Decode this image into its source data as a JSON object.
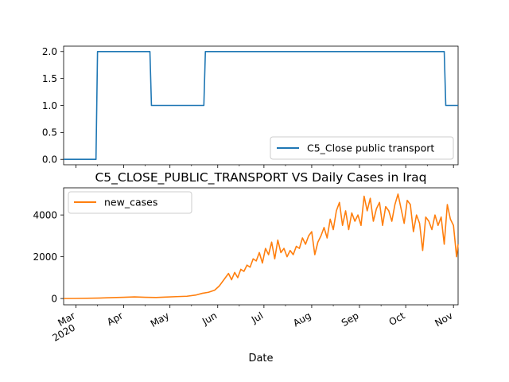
{
  "chart_data": [
    {
      "type": "line",
      "title": "",
      "xlabel": "",
      "ylabel": "",
      "ylim": [
        -0.1,
        2.1
      ],
      "yticks": [
        0.0,
        0.5,
        1.0,
        1.5,
        2.0
      ],
      "ytick_labels": [
        "0.0",
        "0.5",
        "1.0",
        "1.5",
        "2.0"
      ],
      "legend_placement": "lower-right",
      "grid": false,
      "series": [
        {
          "name": "C5_Close public transport",
          "color": "#1f77b4",
          "x": [
            "2020-02-22",
            "2020-03-14",
            "2020-03-15",
            "2020-04-18",
            "2020-04-19",
            "2020-05-23",
            "2020-05-24",
            "2020-10-26",
            "2020-10-27",
            "2020-11-04"
          ],
          "values": [
            0,
            0,
            2,
            2,
            1,
            1,
            2,
            2,
            1,
            1
          ]
        }
      ]
    },
    {
      "type": "line",
      "title": "C5_CLOSE_PUBLIC_TRANSPORT VS Daily Cases in Iraq",
      "xlabel": "Date",
      "ylabel": "",
      "ylim": [
        -300,
        5300
      ],
      "yticks": [
        0,
        2000,
        4000
      ],
      "ytick_labels": [
        "0",
        "2000",
        "4000"
      ],
      "xlim": [
        "2020-02-22",
        "2020-11-04"
      ],
      "xticks": [
        "2020-03-01",
        "2020-04-01",
        "2020-05-01",
        "2020-06-01",
        "2020-07-01",
        "2020-08-01",
        "2020-09-01",
        "2020-10-01",
        "2020-11-01"
      ],
      "xtick_labels": [
        "Mar",
        "Apr",
        "May",
        "Jun",
        "Jul",
        "Aug",
        "Sep",
        "Oct",
        "Nov"
      ],
      "xtick_year_label": "2020",
      "legend_placement": "top-left",
      "grid": false,
      "series": [
        {
          "name": "new_cases",
          "color": "#ff7f0e",
          "x": [
            "2020-02-22",
            "2020-03-01",
            "2020-03-15",
            "2020-03-25",
            "2020-04-01",
            "2020-04-08",
            "2020-04-15",
            "2020-04-22",
            "2020-04-28",
            "2020-05-05",
            "2020-05-12",
            "2020-05-18",
            "2020-05-22",
            "2020-05-26",
            "2020-05-30",
            "2020-06-02",
            "2020-06-05",
            "2020-06-08",
            "2020-06-10",
            "2020-06-12",
            "2020-06-14",
            "2020-06-16",
            "2020-06-18",
            "2020-06-20",
            "2020-06-22",
            "2020-06-24",
            "2020-06-26",
            "2020-06-28",
            "2020-06-30",
            "2020-07-02",
            "2020-07-04",
            "2020-07-06",
            "2020-07-08",
            "2020-07-10",
            "2020-07-12",
            "2020-07-14",
            "2020-07-16",
            "2020-07-18",
            "2020-07-20",
            "2020-07-22",
            "2020-07-24",
            "2020-07-26",
            "2020-07-28",
            "2020-07-30",
            "2020-08-01",
            "2020-08-03",
            "2020-08-05",
            "2020-08-07",
            "2020-08-09",
            "2020-08-11",
            "2020-08-13",
            "2020-08-15",
            "2020-08-17",
            "2020-08-19",
            "2020-08-21",
            "2020-08-23",
            "2020-08-25",
            "2020-08-27",
            "2020-08-29",
            "2020-08-31",
            "2020-09-02",
            "2020-09-04",
            "2020-09-06",
            "2020-09-08",
            "2020-09-10",
            "2020-09-12",
            "2020-09-14",
            "2020-09-16",
            "2020-09-18",
            "2020-09-20",
            "2020-09-22",
            "2020-09-24",
            "2020-09-26",
            "2020-09-28",
            "2020-09-30",
            "2020-10-02",
            "2020-10-04",
            "2020-10-06",
            "2020-10-08",
            "2020-10-10",
            "2020-10-12",
            "2020-10-14",
            "2020-10-16",
            "2020-10-18",
            "2020-10-20",
            "2020-10-22",
            "2020-10-24",
            "2020-10-26",
            "2020-10-28",
            "2020-10-30",
            "2020-11-01",
            "2020-11-03",
            "2020-11-04"
          ],
          "values": [
            0,
            5,
            20,
            45,
            60,
            80,
            60,
            50,
            70,
            90,
            110,
            170,
            250,
            300,
            400,
            600,
            900,
            1200,
            900,
            1250,
            1000,
            1400,
            1300,
            1600,
            1500,
            1900,
            1800,
            2200,
            1700,
            2400,
            2100,
            2700,
            1900,
            2800,
            2200,
            2400,
            2000,
            2300,
            2100,
            2500,
            2400,
            2900,
            2600,
            3000,
            3200,
            2100,
            2700,
            3000,
            3400,
            2900,
            3800,
            3300,
            4200,
            4600,
            3500,
            4200,
            3300,
            4100,
            3700,
            4000,
            3500,
            4900,
            4200,
            4800,
            3700,
            4300,
            4600,
            3500,
            4400,
            4200,
            3700,
            4500,
            5000,
            4300,
            3600,
            4700,
            4500,
            3200,
            4000,
            3600,
            2300,
            3900,
            3700,
            3300,
            4000,
            3500,
            3900,
            2600,
            4500,
            3800,
            3500,
            2000,
            2600
          ]
        }
      ]
    }
  ]
}
